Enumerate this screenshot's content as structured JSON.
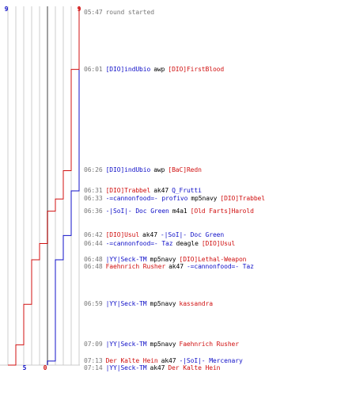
{
  "colors": {
    "blue": "#1010c8",
    "red": "#d01010",
    "grid": "#cccccc",
    "grid_major": "#888888",
    "time": "#777777"
  },
  "axis": {
    "blue_start": "9",
    "red_start": "9",
    "blue_end": "5",
    "red_end": "0"
  },
  "events": [
    {
      "time": "05:47",
      "text": "round started"
    },
    {
      "time": "06:01",
      "killer": "[DIO]indUbio",
      "killer_team": "blue",
      "weapon": "awp",
      "victim": "[DIO]FirstBlood",
      "victim_team": "red"
    },
    {
      "time": "06:26",
      "killer": "[DIO]indUbio",
      "killer_team": "blue",
      "weapon": "awp",
      "victim": "[BaC]Redn",
      "victim_team": "red"
    },
    {
      "time": "06:31",
      "killer": "[DIO]Trabbel",
      "killer_team": "red",
      "weapon": "ak47",
      "victim": "Q_Frutti",
      "victim_team": "blue"
    },
    {
      "time": "06:33",
      "killer": "-=cannonfood=- profivo",
      "killer_team": "blue",
      "weapon": "mp5navy",
      "victim": "[DIO]Trabbel",
      "victim_team": "red"
    },
    {
      "time": "06:36",
      "killer": "-|SoI|- Doc Green",
      "killer_team": "blue",
      "weapon": "m4a1",
      "victim": "[Old Farts]Harold",
      "victim_team": "red"
    },
    {
      "time": "06:42",
      "killer": "[DIO]Usul",
      "killer_team": "red",
      "weapon": "ak47",
      "victim": "-|SoI|- Doc Green",
      "victim_team": "blue"
    },
    {
      "time": "06:44",
      "killer": "-=cannonfood=- Taz",
      "killer_team": "blue",
      "weapon": "deagle",
      "victim": "[DIO]Usul",
      "victim_team": "red"
    },
    {
      "time": "06:48",
      "killer": "|YY|Seck-TM",
      "killer_team": "blue",
      "weapon": "mp5navy",
      "victim": "[DIO]Lethal-Weapon",
      "victim_team": "red"
    },
    {
      "time": "06:48",
      "killer": "Faehnrich Rusher",
      "killer_team": "red",
      "weapon": "ak47",
      "victim": "-=cannonfood=- Taz",
      "victim_team": "blue"
    },
    {
      "time": "06:59",
      "killer": "|YY|Seck-TM",
      "killer_team": "blue",
      "weapon": "mp5navy",
      "victim": "kassandra",
      "victim_team": "red"
    },
    {
      "time": "07:09",
      "killer": "|YY|Seck-TM",
      "killer_team": "blue",
      "weapon": "mp5navy",
      "victim": "Faehnrich Rusher",
      "victim_team": "red"
    },
    {
      "time": "07:13",
      "killer": "Der Kalte Hein",
      "killer_team": "red",
      "weapon": "ak47",
      "victim": "-|SoI|- Mercenary",
      "victim_team": "blue"
    },
    {
      "time": "07:14",
      "killer": "|YY|Seck-TM",
      "killer_team": "blue",
      "weapon": "ak47",
      "victim": "Der Kalte Hein",
      "victim_team": "red"
    }
  ]
}
